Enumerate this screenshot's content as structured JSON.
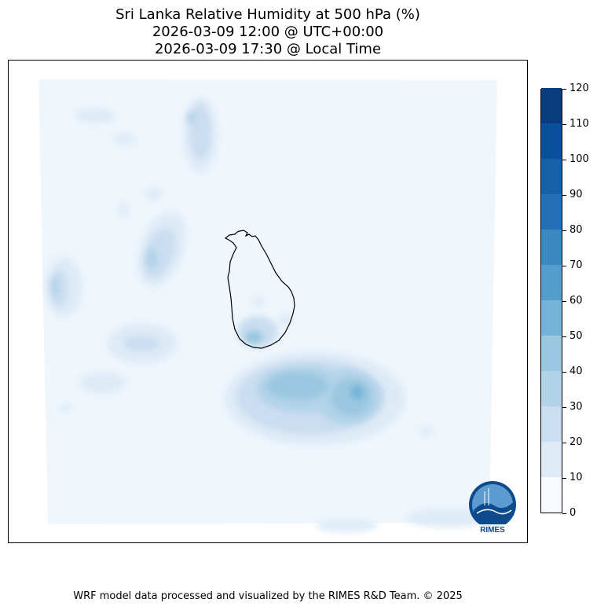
{
  "title": {
    "line1": "Sri Lanka Relative Humidity at 500 hPa (%)",
    "line2": "2026-03-09 12:00 @ UTC+00:00",
    "line3": "2026-03-09 17:30 @ Local Time"
  },
  "colorbar": {
    "levels": [
      0,
      10,
      20,
      30,
      40,
      50,
      60,
      70,
      80,
      90,
      100,
      110,
      120
    ],
    "labels": [
      "0",
      "10",
      "20",
      "30",
      "40",
      "50",
      "60",
      "70",
      "80",
      "90",
      "100",
      "110",
      "120"
    ],
    "colors": [
      "#f7fbff",
      "#deebf7",
      "#cadef1",
      "#b3d3e9",
      "#9ac8e0",
      "#75b4d8",
      "#539ecd",
      "#3a89c1",
      "#2470b6",
      "#1461a9",
      "#08509b",
      "#083c7d"
    ]
  },
  "map": {
    "background_color": "#eff6fc",
    "coastline_color": "#000000",
    "logo_text": "RIMES"
  },
  "footer": "WRF model data processed and visualized by the RIMES R&D Team. © 2025"
}
